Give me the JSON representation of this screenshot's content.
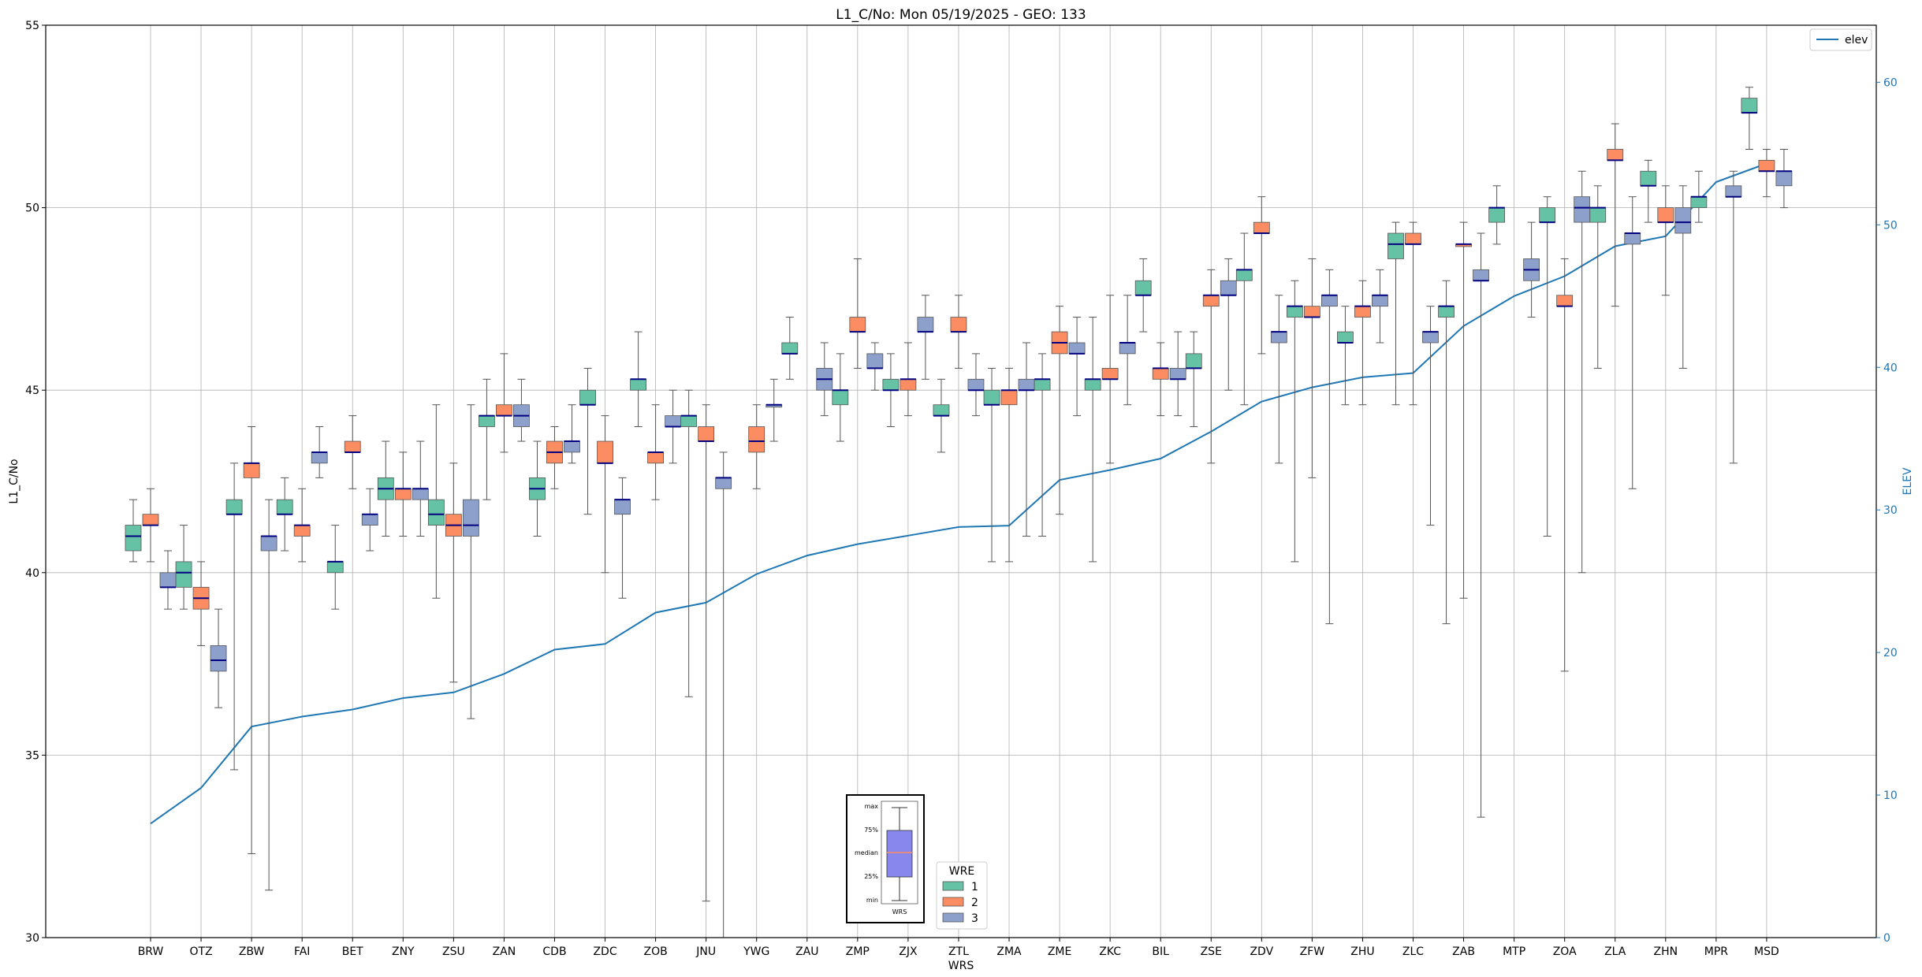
{
  "chart_data": {
    "type": "box",
    "title": "L1_C/No: Mon 05/19/2025 - GEO: 133",
    "xlabel": "WRS",
    "ylabel": "L1_C/No",
    "y2label": "ELEV",
    "ylim": [
      30,
      55
    ],
    "y2lim": [
      0,
      64
    ],
    "yticks": [
      "30",
      "35",
      "40",
      "45",
      "50",
      "55"
    ],
    "y2ticks": [
      "0",
      "10",
      "20",
      "30",
      "40",
      "50",
      "60"
    ],
    "grid": true,
    "categories": [
      "BRW",
      "OTZ",
      "ZBW",
      "FAI",
      "BET",
      "ZNY",
      "ZSU",
      "ZAN",
      "CDB",
      "ZDC",
      "ZOB",
      "JNU",
      "YWG",
      "ZAU",
      "ZMP",
      "ZJX",
      "ZTL",
      "ZMA",
      "ZME",
      "ZKC",
      "BIL",
      "ZSE",
      "ZDV",
      "ZFW",
      "ZHU",
      "ZLC",
      "ZAB",
      "MTP",
      "ZOA",
      "ZLA",
      "ZHN",
      "MPR",
      "MSD"
    ],
    "colors": {
      "1": "#66c2a5",
      "2": "#fc8d62",
      "3": "#8da0cb",
      "median": "#000080",
      "elev": "#1f77b4"
    },
    "series": [
      {
        "name": "1",
        "boxes": [
          {
            "cat": 0,
            "whislo": 40.3,
            "q1": 40.6,
            "med": 41.0,
            "q3": 41.3,
            "whishi": 42.0
          },
          {
            "cat": 1,
            "whislo": 39.0,
            "q1": 39.6,
            "med": 40.0,
            "q3": 40.3,
            "whishi": 41.3
          },
          {
            "cat": 2,
            "whislo": 34.6,
            "q1": 41.6,
            "med": 41.6,
            "q3": 42.0,
            "whishi": 43.0
          },
          {
            "cat": 3,
            "whislo": 40.6,
            "q1": 41.6,
            "med": 41.6,
            "q3": 42.0,
            "whishi": 42.6
          },
          {
            "cat": 4,
            "whislo": 39.0,
            "q1": 40.0,
            "med": 40.3,
            "q3": 40.3,
            "whishi": 41.3
          },
          {
            "cat": 5,
            "whislo": 41.0,
            "q1": 42.0,
            "med": 42.3,
            "q3": 42.6,
            "whishi": 43.6
          },
          {
            "cat": 6,
            "whislo": 39.3,
            "q1": 41.3,
            "med": 41.6,
            "q3": 42.0,
            "whishi": 44.6
          },
          {
            "cat": 7,
            "whislo": 42.0,
            "q1": 44.0,
            "med": 44.3,
            "q3": 44.3,
            "whishi": 45.3
          },
          {
            "cat": 8,
            "whislo": 41.0,
            "q1": 42.0,
            "med": 42.3,
            "q3": 42.6,
            "whishi": 43.6
          },
          {
            "cat": 9,
            "whislo": 41.6,
            "q1": 44.6,
            "med": 44.6,
            "q3": 45.0,
            "whishi": 45.6
          },
          {
            "cat": 10,
            "whislo": 44.0,
            "q1": 45.0,
            "med": 45.3,
            "q3": 45.3,
            "whishi": 46.6
          },
          {
            "cat": 11,
            "whislo": 36.6,
            "q1": 44.0,
            "med": 44.3,
            "q3": 44.3,
            "whishi": 45.0
          },
          {
            "cat": 13,
            "whislo": 45.3,
            "q1": 46.0,
            "med": 46.0,
            "q3": 46.3,
            "whishi": 47.0
          },
          {
            "cat": 14,
            "whislo": 43.6,
            "q1": 44.6,
            "med": 45.0,
            "q3": 45.0,
            "whishi": 46.0
          },
          {
            "cat": 15,
            "whislo": 44.0,
            "q1": 45.0,
            "med": 45.0,
            "q3": 45.3,
            "whishi": 46.0
          },
          {
            "cat": 16,
            "whislo": 43.3,
            "q1": 44.3,
            "med": 44.3,
            "q3": 44.6,
            "whishi": 45.3
          },
          {
            "cat": 17,
            "whislo": 40.3,
            "q1": 44.6,
            "med": 44.6,
            "q3": 45.0,
            "whishi": 45.6
          },
          {
            "cat": 18,
            "whislo": 41.0,
            "q1": 45.0,
            "med": 45.3,
            "q3": 45.3,
            "whishi": 46.0
          },
          {
            "cat": 19,
            "whislo": 40.3,
            "q1": 45.0,
            "med": 45.3,
            "q3": 45.3,
            "whishi": 47.0
          },
          {
            "cat": 20,
            "whislo": 46.6,
            "q1": 47.6,
            "med": 47.6,
            "q3": 48.0,
            "whishi": 48.6
          },
          {
            "cat": 21,
            "whislo": 44.0,
            "q1": 45.6,
            "med": 45.6,
            "q3": 46.0,
            "whishi": 46.6
          },
          {
            "cat": 22,
            "whislo": 44.6,
            "q1": 48.0,
            "med": 48.3,
            "q3": 48.3,
            "whishi": 49.3
          },
          {
            "cat": 23,
            "whislo": 40.3,
            "q1": 47.0,
            "med": 47.3,
            "q3": 47.3,
            "whishi": 48.0
          },
          {
            "cat": 24,
            "whislo": 44.6,
            "q1": 46.3,
            "med": 46.3,
            "q3": 46.6,
            "whishi": 47.3
          },
          {
            "cat": 25,
            "whislo": 44.6,
            "q1": 48.6,
            "med": 49.0,
            "q3": 49.3,
            "whishi": 49.6
          },
          {
            "cat": 26,
            "whislo": 38.6,
            "q1": 47.0,
            "med": 47.3,
            "q3": 47.3,
            "whishi": 48.0
          },
          {
            "cat": 27,
            "whislo": 49.0,
            "q1": 49.6,
            "med": 50.0,
            "q3": 50.0,
            "whishi": 50.6
          },
          {
            "cat": 28,
            "whislo": 41.0,
            "q1": 49.6,
            "med": 49.6,
            "q3": 50.0,
            "whishi": 50.3
          },
          {
            "cat": 29,
            "whislo": 45.6,
            "q1": 49.6,
            "med": 50.0,
            "q3": 50.0,
            "whishi": 50.6
          },
          {
            "cat": 30,
            "whislo": 49.6,
            "q1": 50.6,
            "med": 50.6,
            "q3": 51.0,
            "whishi": 51.3
          },
          {
            "cat": 31,
            "whislo": 49.6,
            "q1": 50.0,
            "med": 50.3,
            "q3": 50.3,
            "whishi": 51.0
          },
          {
            "cat": 32,
            "whislo": 51.6,
            "q1": 52.6,
            "med": 52.6,
            "q3": 53.0,
            "whishi": 53.3
          }
        ]
      },
      {
        "name": "2",
        "boxes": [
          {
            "cat": 0,
            "whislo": 40.3,
            "q1": 41.3,
            "med": 41.3,
            "q3": 41.6,
            "whishi": 42.3
          },
          {
            "cat": 1,
            "whislo": 38.0,
            "q1": 39.0,
            "med": 39.3,
            "q3": 39.6,
            "whishi": 40.3
          },
          {
            "cat": 2,
            "whislo": 32.3,
            "q1": 42.6,
            "med": 43.0,
            "q3": 43.0,
            "whishi": 44.0
          },
          {
            "cat": 3,
            "whislo": 40.3,
            "q1": 41.0,
            "med": 41.3,
            "q3": 41.3,
            "whishi": 42.3
          },
          {
            "cat": 4,
            "whislo": 42.3,
            "q1": 43.3,
            "med": 43.3,
            "q3": 43.6,
            "whishi": 44.3
          },
          {
            "cat": 5,
            "whislo": 41.0,
            "q1": 42.0,
            "med": 42.3,
            "q3": 42.3,
            "whishi": 43.3
          },
          {
            "cat": 6,
            "whislo": 37.0,
            "q1": 41.0,
            "med": 41.3,
            "q3": 41.6,
            "whishi": 43.0
          },
          {
            "cat": 7,
            "whislo": 43.3,
            "q1": 44.3,
            "med": 44.3,
            "q3": 44.6,
            "whishi": 46.0
          },
          {
            "cat": 8,
            "whislo": 42.3,
            "q1": 43.0,
            "med": 43.3,
            "q3": 43.6,
            "whishi": 44.0
          },
          {
            "cat": 9,
            "whislo": 40.0,
            "q1": 43.0,
            "med": 43.0,
            "q3": 43.6,
            "whishi": 44.3
          },
          {
            "cat": 10,
            "whislo": 42.0,
            "q1": 43.0,
            "med": 43.3,
            "q3": 43.3,
            "whishi": 44.6
          },
          {
            "cat": 11,
            "whislo": 31.0,
            "q1": 43.6,
            "med": 43.6,
            "q3": 44.0,
            "whishi": 44.6
          },
          {
            "cat": 12,
            "whislo": 42.3,
            "q1": 43.3,
            "med": 43.6,
            "q3": 44.0,
            "whishi": 44.6
          },
          {
            "cat": 14,
            "whislo": 45.6,
            "q1": 46.6,
            "med": 46.6,
            "q3": 47.0,
            "whishi": 48.6
          },
          {
            "cat": 15,
            "whislo": 44.3,
            "q1": 45.0,
            "med": 45.3,
            "q3": 45.3,
            "whishi": 46.3
          },
          {
            "cat": 16,
            "whislo": 45.6,
            "q1": 46.6,
            "med": 46.6,
            "q3": 47.0,
            "whishi": 47.6
          },
          {
            "cat": 17,
            "whislo": 40.3,
            "q1": 44.6,
            "med": 45.0,
            "q3": 45.0,
            "whishi": 45.6
          },
          {
            "cat": 18,
            "whislo": 41.6,
            "q1": 46.0,
            "med": 46.3,
            "q3": 46.6,
            "whishi": 47.3
          },
          {
            "cat": 19,
            "whislo": 43.0,
            "q1": 45.3,
            "med": 45.3,
            "q3": 45.6,
            "whishi": 47.6
          },
          {
            "cat": 20,
            "whislo": 44.3,
            "q1": 45.3,
            "med": 45.6,
            "q3": 45.6,
            "whishi": 46.3
          },
          {
            "cat": 21,
            "whislo": 43.0,
            "q1": 47.3,
            "med": 47.6,
            "q3": 47.6,
            "whishi": 48.3
          },
          {
            "cat": 22,
            "whislo": 46.0,
            "q1": 49.3,
            "med": 49.3,
            "q3": 49.6,
            "whishi": 50.3
          },
          {
            "cat": 23,
            "whislo": 42.6,
            "q1": 47.0,
            "med": 47.0,
            "q3": 47.3,
            "whishi": 48.6
          },
          {
            "cat": 24,
            "whislo": 44.6,
            "q1": 47.0,
            "med": 47.3,
            "q3": 47.3,
            "whishi": 48.0
          },
          {
            "cat": 25,
            "whislo": 44.6,
            "q1": 49.0,
            "med": 49.0,
            "q3": 49.3,
            "whishi": 49.6
          },
          {
            "cat": 26,
            "whislo": 39.3,
            "q1": 49.0,
            "med": 49.0,
            "q3": 49.0,
            "whishi": 49.6
          },
          {
            "cat": 28,
            "whislo": 37.3,
            "q1": 47.3,
            "med": 47.3,
            "q3": 47.6,
            "whishi": 48.6
          },
          {
            "cat": 29,
            "whislo": 47.3,
            "q1": 51.3,
            "med": 51.3,
            "q3": 51.6,
            "whishi": 52.3
          },
          {
            "cat": 30,
            "whislo": 47.6,
            "q1": 49.6,
            "med": 49.6,
            "q3": 50.0,
            "whishi": 50.6
          },
          {
            "cat": 32,
            "whislo": 50.3,
            "q1": 51.0,
            "med": 51.0,
            "q3": 51.3,
            "whishi": 51.6
          }
        ]
      },
      {
        "name": "3",
        "boxes": [
          {
            "cat": 0,
            "whislo": 39.0,
            "q1": 39.6,
            "med": 39.6,
            "q3": 40.0,
            "whishi": 40.6
          },
          {
            "cat": 1,
            "whislo": 36.3,
            "q1": 37.3,
            "med": 37.6,
            "q3": 38.0,
            "whishi": 39.0
          },
          {
            "cat": 2,
            "whislo": 31.3,
            "q1": 40.6,
            "med": 41.0,
            "q3": 41.0,
            "whishi": 42.0
          },
          {
            "cat": 3,
            "whislo": 42.6,
            "q1": 43.0,
            "med": 43.3,
            "q3": 43.3,
            "whishi": 44.0
          },
          {
            "cat": 4,
            "whislo": 40.6,
            "q1": 41.3,
            "med": 41.6,
            "q3": 41.6,
            "whishi": 42.3
          },
          {
            "cat": 5,
            "whislo": 41.0,
            "q1": 42.0,
            "med": 42.3,
            "q3": 42.3,
            "whishi": 43.6
          },
          {
            "cat": 6,
            "whislo": 36.0,
            "q1": 41.0,
            "med": 41.3,
            "q3": 42.0,
            "whishi": 44.6
          },
          {
            "cat": 7,
            "whislo": 43.6,
            "q1": 44.0,
            "med": 44.3,
            "q3": 44.6,
            "whishi": 45.3
          },
          {
            "cat": 8,
            "whislo": 43.0,
            "q1": 43.3,
            "med": 43.6,
            "q3": 43.6,
            "whishi": 44.6
          },
          {
            "cat": 9,
            "whislo": 39.3,
            "q1": 41.6,
            "med": 42.0,
            "q3": 42.0,
            "whishi": 42.6
          },
          {
            "cat": 10,
            "whislo": 43.0,
            "q1": 44.0,
            "med": 44.0,
            "q3": 44.3,
            "whishi": 45.0
          },
          {
            "cat": 11,
            "whislo": 30.0,
            "q1": 42.3,
            "med": 42.6,
            "q3": 42.6,
            "whishi": 43.3
          },
          {
            "cat": 12,
            "whislo": 43.6,
            "q1": 44.6,
            "med": 44.6,
            "q3": 44.6,
            "whishi": 45.3
          },
          {
            "cat": 13,
            "whislo": 44.3,
            "q1": 45.0,
            "med": 45.3,
            "q3": 45.6,
            "whishi": 46.3
          },
          {
            "cat": 14,
            "whislo": 45.0,
            "q1": 45.6,
            "med": 45.6,
            "q3": 46.0,
            "whishi": 46.3
          },
          {
            "cat": 15,
            "whislo": 45.3,
            "q1": 46.6,
            "med": 46.6,
            "q3": 47.0,
            "whishi": 47.6
          },
          {
            "cat": 16,
            "whislo": 44.3,
            "q1": 45.0,
            "med": 45.0,
            "q3": 45.3,
            "whishi": 46.0
          },
          {
            "cat": 17,
            "whislo": 41.0,
            "q1": 45.0,
            "med": 45.0,
            "q3": 45.3,
            "whishi": 46.3
          },
          {
            "cat": 18,
            "whislo": 44.3,
            "q1": 46.0,
            "med": 46.0,
            "q3": 46.3,
            "whishi": 47.0
          },
          {
            "cat": 19,
            "whislo": 44.6,
            "q1": 46.0,
            "med": 46.3,
            "q3": 46.3,
            "whishi": 47.6
          },
          {
            "cat": 20,
            "whislo": 44.3,
            "q1": 45.3,
            "med": 45.3,
            "q3": 45.6,
            "whishi": 46.6
          },
          {
            "cat": 21,
            "whislo": 45.0,
            "q1": 47.6,
            "med": 47.6,
            "q3": 48.0,
            "whishi": 48.6
          },
          {
            "cat": 22,
            "whislo": 43.0,
            "q1": 46.3,
            "med": 46.6,
            "q3": 46.6,
            "whishi": 47.6
          },
          {
            "cat": 23,
            "whislo": 38.6,
            "q1": 47.3,
            "med": 47.6,
            "q3": 47.6,
            "whishi": 48.3
          },
          {
            "cat": 24,
            "whislo": 46.3,
            "q1": 47.3,
            "med": 47.6,
            "q3": 47.6,
            "whishi": 48.3
          },
          {
            "cat": 25,
            "whislo": 41.3,
            "q1": 46.3,
            "med": 46.6,
            "q3": 46.6,
            "whishi": 47.3
          },
          {
            "cat": 26,
            "whislo": 33.3,
            "q1": 48.0,
            "med": 48.0,
            "q3": 48.3,
            "whishi": 49.3
          },
          {
            "cat": 27,
            "whislo": 47.0,
            "q1": 48.0,
            "med": 48.3,
            "q3": 48.6,
            "whishi": 49.6
          },
          {
            "cat": 28,
            "whislo": 40.0,
            "q1": 49.6,
            "med": 50.0,
            "q3": 50.3,
            "whishi": 51.0
          },
          {
            "cat": 29,
            "whislo": 42.3,
            "q1": 49.0,
            "med": 49.3,
            "q3": 49.3,
            "whishi": 50.3
          },
          {
            "cat": 30,
            "whislo": 45.6,
            "q1": 49.3,
            "med": 49.6,
            "q3": 50.0,
            "whishi": 50.6
          },
          {
            "cat": 31,
            "whislo": 43.0,
            "q1": 50.3,
            "med": 50.3,
            "q3": 50.6,
            "whishi": 51.0
          },
          {
            "cat": 32,
            "whislo": 50.0,
            "q1": 50.6,
            "med": 51.0,
            "q3": 51.0,
            "whishi": 51.6
          }
        ]
      }
    ],
    "line": {
      "name": "elev",
      "axis": "right",
      "x": [
        "BRW",
        "OTZ",
        "ZBW",
        "FAI",
        "BET",
        "ZNY",
        "ZSU",
        "ZAN",
        "CDB",
        "ZDC",
        "ZOB",
        "JNU",
        "YWG",
        "ZAU",
        "ZMP",
        "ZJX",
        "ZTL",
        "ZMA",
        "ZME",
        "ZKC",
        "BIL",
        "ZSE",
        "ZDV",
        "ZFW",
        "ZHU",
        "ZLC",
        "ZAB",
        "MTP",
        "ZOA",
        "ZLA",
        "ZHN",
        "MPR",
        "MSD"
      ],
      "values": [
        8.0,
        10.5,
        14.8,
        15.5,
        16.0,
        16.8,
        17.2,
        18.5,
        20.2,
        20.6,
        22.8,
        23.5,
        25.5,
        26.8,
        27.6,
        28.2,
        28.8,
        28.9,
        32.1,
        32.8,
        33.6,
        35.5,
        37.6,
        38.6,
        39.3,
        39.6,
        42.9,
        45.0,
        46.4,
        48.5,
        49.2,
        53.0,
        54.3
      ]
    },
    "legends": [
      {
        "placement": "top-right",
        "entries": [
          "elev"
        ]
      },
      {
        "placement": "lower-center",
        "title": "WRE",
        "entries": [
          "1",
          "2",
          "3"
        ]
      }
    ],
    "key_image_labels": [
      "max",
      "75%",
      "median",
      "25%",
      "min",
      "WRS"
    ]
  }
}
